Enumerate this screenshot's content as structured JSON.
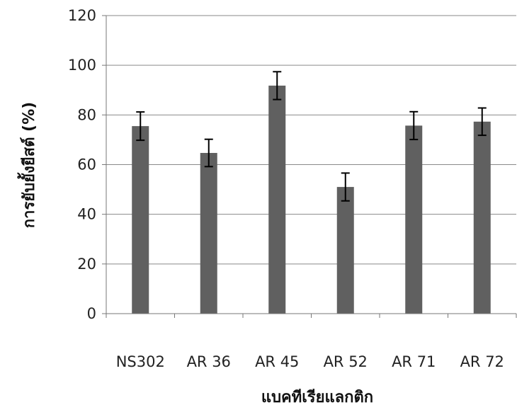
{
  "chart_data": {
    "type": "bar",
    "title": "",
    "xlabel": "แบคทีเรียแลกติก",
    "ylabel": "การยับยั้งยีสต์ (%)",
    "categories": [
      "NS302",
      "AR 36",
      "AR 45",
      "AR 52",
      "AR 71",
      "AR 72"
    ],
    "series": [
      {
        "values": [
          75.5,
          64.7,
          91.8,
          51.0,
          75.7,
          77.3
        ],
        "errors": [
          5.7,
          5.5,
          5.6,
          5.6,
          5.6,
          5.5
        ]
      }
    ],
    "ylim": [
      0,
      120
    ],
    "yticks": [
      0,
      20,
      40,
      60,
      80,
      100,
      120
    ],
    "grid": true,
    "legend": "none",
    "bar_color": "#606060",
    "grid_color": "#8a8a8a"
  }
}
